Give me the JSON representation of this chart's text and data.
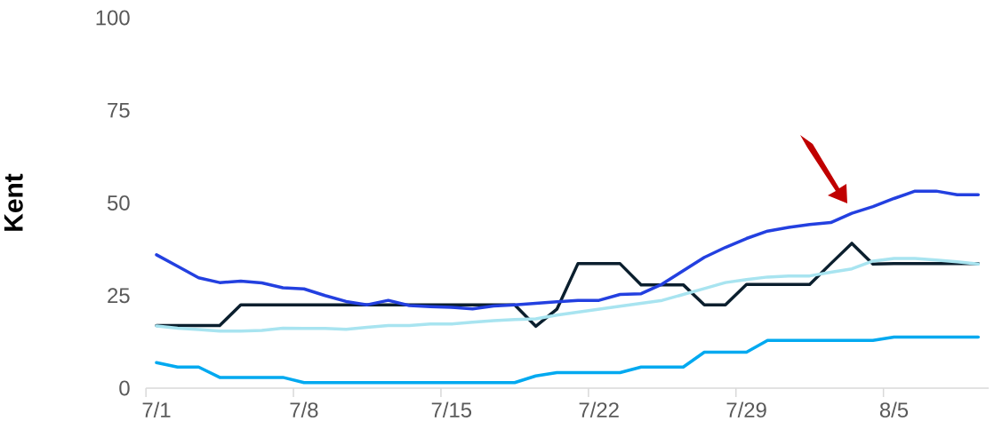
{
  "chart_data": {
    "type": "line",
    "ylabel": "Kent",
    "categories": [
      "7/1",
      null,
      null,
      null,
      null,
      null,
      null,
      "7/8",
      null,
      null,
      null,
      null,
      null,
      null,
      "7/15",
      null,
      null,
      null,
      null,
      null,
      null,
      "7/22",
      null,
      null,
      null,
      null,
      null,
      null,
      "7/29",
      null,
      null,
      null,
      null,
      null,
      null,
      "8/5",
      null,
      null,
      null,
      null
    ],
    "series": [
      {
        "color": "#00a9f0",
        "values": [
          6.9,
          5.7,
          5.7,
          2.9,
          2.9,
          2.9,
          2.9,
          1.5,
          1.5,
          1.5,
          1.5,
          1.5,
          1.5,
          1.5,
          1.5,
          1.5,
          1.5,
          1.5,
          3.3,
          4.2,
          4.2,
          4.2,
          4.2,
          5.7,
          5.7,
          5.7,
          9.7,
          9.7,
          9.7,
          12.9,
          12.9,
          12.9,
          12.9,
          12.9,
          12.9,
          13.8,
          13.8,
          13.8,
          13.8,
          13.8
        ]
      },
      {
        "color": "#0b1f2e",
        "values": [
          16.9,
          16.9,
          16.9,
          16.9,
          22.5,
          22.5,
          22.5,
          22.5,
          22.5,
          22.5,
          22.5,
          22.5,
          22.5,
          22.5,
          22.5,
          22.5,
          22.5,
          22.5,
          16.7,
          21.3,
          33.6,
          33.6,
          33.6,
          27.9,
          27.9,
          27.9,
          22.5,
          22.5,
          28.0,
          28.0,
          28.0,
          28.0,
          33.6,
          39.1,
          33.5,
          33.6,
          33.6,
          33.6,
          33.6,
          33.6
        ]
      },
      {
        "color": "#2340e0",
        "values": [
          36.0,
          32.9,
          29.8,
          28.5,
          28.9,
          28.4,
          27.1,
          26.8,
          25.0,
          23.4,
          22.5,
          23.7,
          22.3,
          22.0,
          21.8,
          21.4,
          22.2,
          22.5,
          22.9,
          23.3,
          23.7,
          23.7,
          25.3,
          25.5,
          28.1,
          31.7,
          35.3,
          38.0,
          40.4,
          42.4,
          43.4,
          44.2,
          44.7,
          47.2,
          49.0,
          51.2,
          53.2,
          53.2,
          52.2,
          52.2
        ]
      },
      {
        "color": "#a8e4f0",
        "values": [
          16.8,
          16.2,
          15.8,
          15.4,
          15.4,
          15.6,
          16.2,
          16.1,
          16.1,
          15.9,
          16.4,
          16.9,
          16.9,
          17.3,
          17.3,
          17.8,
          18.2,
          18.5,
          18.7,
          19.7,
          20.5,
          21.3,
          22.1,
          22.9,
          23.7,
          25.3,
          26.9,
          28.5,
          29.3,
          30.0,
          30.3,
          30.3,
          31.3,
          32.2,
          34.3,
          35.0,
          35.0,
          34.6,
          34.1,
          33.5
        ]
      }
    ],
    "ylim": [
      0,
      100
    ],
    "yticks": [
      0,
      25,
      50,
      75,
      100
    ],
    "marker": "none",
    "line_style": "solid"
  }
}
